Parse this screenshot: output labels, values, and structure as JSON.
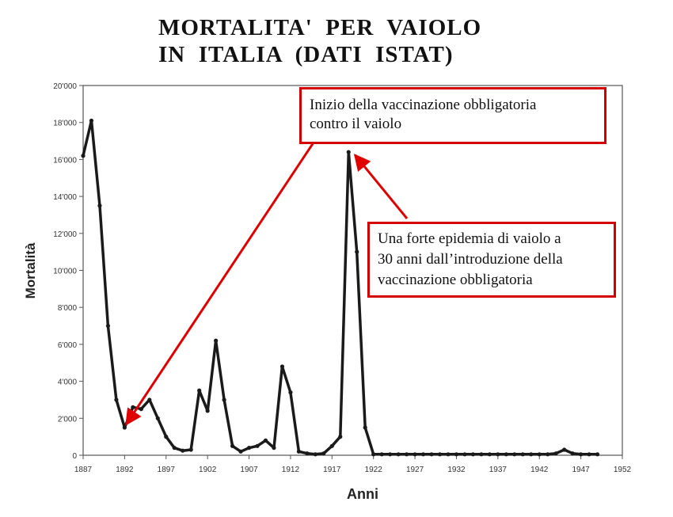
{
  "title": [
    "MORTALITA'  PER  VAIOLO",
    "IN  ITALIA  (DATI  ISTAT)"
  ],
  "callouts": [
    {
      "lines": [
        "Inizio della vaccinazione obbligatoria",
        "contro il vaiolo"
      ]
    },
    {
      "lines": [
        "Una forte epidemia di vaiolo a",
        "30 anni dall’introduzione della",
        "vaccinazione obbligatoria"
      ]
    }
  ],
  "colors": {
    "line": "#1a1a1a",
    "arrow": "#e00000",
    "border": "#d40000"
  },
  "chart_data": {
    "type": "line",
    "xlabel": "Anni",
    "ylabel": "Mortalità",
    "xlim": [
      1887,
      1952
    ],
    "ylim": [
      0,
      20000
    ],
    "xticks": [
      1887,
      1892,
      1897,
      1902,
      1907,
      1912,
      1917,
      1922,
      1927,
      1932,
      1937,
      1942,
      1947,
      1952
    ],
    "xtick_labels": [
      "1887",
      "1892",
      "1897",
      "1902",
      "1907",
      "1912",
      "1917",
      "1922",
      "1927",
      "1932",
      "1937",
      "1942",
      "1947",
      "1952"
    ],
    "yticks": [
      0,
      2000,
      4000,
      6000,
      8000,
      10000,
      12000,
      14000,
      16000,
      18000,
      20000
    ],
    "ytick_labels": [
      "0",
      "2'000",
      "4'000",
      "6'000",
      "8'000",
      "10'000",
      "12'000",
      "14'000",
      "16'000",
      "18'000",
      "20'000"
    ],
    "grid": false,
    "annotations": [
      {
        "text_ref": 0,
        "points_to": [
          1892,
          1500
        ]
      },
      {
        "text_ref": 1,
        "points_to": [
          1919,
          16500
        ]
      }
    ],
    "series": [
      {
        "x": [
          1887,
          1888,
          1889,
          1890,
          1891,
          1892,
          1893,
          1894,
          1895,
          1896,
          1897,
          1898,
          1899,
          1900,
          1901,
          1902,
          1903,
          1904,
          1905,
          1906,
          1907,
          1908,
          1909,
          1910,
          1911,
          1912,
          1913,
          1914,
          1915,
          1916,
          1917,
          1918,
          1919,
          1920,
          1921,
          1922,
          1923,
          1924,
          1925,
          1926,
          1927,
          1928,
          1929,
          1930,
          1931,
          1932,
          1933,
          1934,
          1935,
          1936,
          1937,
          1938,
          1939,
          1940,
          1941,
          1942,
          1943,
          1944,
          1945,
          1946,
          1947,
          1948,
          1949
        ],
        "values": [
          16200,
          18100,
          13500,
          7000,
          3000,
          1500,
          2600,
          2500,
          3000,
          2000,
          1000,
          400,
          250,
          300,
          3500,
          2400,
          6200,
          3000,
          500,
          200,
          400,
          500,
          800,
          400,
          4800,
          3400,
          200,
          100,
          50,
          100,
          500,
          1000,
          16400,
          11000,
          1500,
          50,
          50,
          50,
          50,
          50,
          50,
          50,
          50,
          50,
          50,
          50,
          50,
          50,
          50,
          50,
          50,
          50,
          50,
          50,
          50,
          50,
          50,
          100,
          300,
          100,
          50,
          50,
          50
        ]
      }
    ]
  }
}
